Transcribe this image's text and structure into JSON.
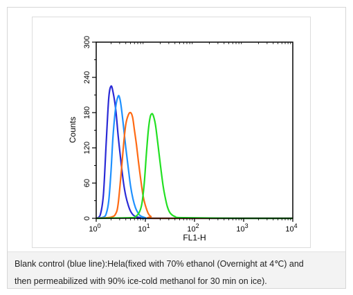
{
  "chart_data": {
    "type": "line",
    "title": "",
    "xlabel": "FL1-H",
    "ylabel": "Counts",
    "x_scale": "log",
    "xlim": [
      1,
      10000
    ],
    "ylim": [
      0,
      300
    ],
    "x_ticks": [
      {
        "value": 1,
        "base": "10",
        "exp": "0"
      },
      {
        "value": 10,
        "base": "10",
        "exp": "1"
      },
      {
        "value": 100,
        "base": "10",
        "exp": "2"
      },
      {
        "value": 1000,
        "base": "10",
        "exp": "3"
      },
      {
        "value": 10000,
        "base": "10",
        "exp": "4"
      }
    ],
    "y_ticks": [
      "0",
      "60",
      "120",
      "180",
      "240",
      "300"
    ],
    "grid": false,
    "legend": "none",
    "series": [
      {
        "color": "#2a2ad6",
        "x": [
          1,
          1.2,
          1.4,
          1.6,
          1.8,
          2.0,
          2.2,
          2.5,
          2.8,
          3.2,
          3.6,
          4.0,
          4.5,
          5.0,
          5.6,
          6.3,
          7,
          8,
          10,
          1000,
          10000
        ],
        "y": [
          0,
          5,
          40,
          130,
          205,
          225,
          215,
          185,
          140,
          95,
          60,
          38,
          22,
          12,
          6,
          3,
          2,
          1,
          0,
          0,
          0
        ]
      },
      {
        "color": "#1e90ff",
        "x": [
          1,
          1.4,
          1.6,
          1.8,
          2.0,
          2.2,
          2.5,
          2.8,
          3.0,
          3.2,
          3.5,
          4.0,
          4.5,
          5.0,
          5.6,
          6.3,
          7.1,
          8.0,
          10,
          12,
          1000,
          10000
        ],
        "y": [
          0,
          2,
          8,
          30,
          80,
          140,
          190,
          208,
          205,
          192,
          165,
          120,
          85,
          55,
          33,
          18,
          9,
          4,
          1,
          0,
          0,
          0
        ]
      },
      {
        "color": "#ff6a13",
        "x": [
          1,
          2.0,
          2.5,
          2.8,
          3.2,
          3.6,
          4.0,
          4.5,
          5.0,
          5.5,
          6.0,
          6.6,
          7.2,
          8.0,
          9.0,
          10,
          11.5,
          13,
          16,
          1000,
          10000
        ],
        "y": [
          0,
          2,
          8,
          25,
          75,
          125,
          160,
          176,
          180,
          172,
          150,
          125,
          98,
          68,
          38,
          22,
          8,
          3,
          0,
          0,
          0
        ]
      },
      {
        "color": "#22e022",
        "x": [
          1,
          5.0,
          6.3,
          7.5,
          8.5,
          9.5,
          10.5,
          11.5,
          12.5,
          13.5,
          14.5,
          16,
          17.5,
          19,
          21,
          23,
          25,
          28,
          32,
          40,
          60,
          1000,
          10000
        ],
        "y": [
          0,
          1,
          3,
          10,
          25,
          60,
          110,
          150,
          172,
          178,
          175,
          160,
          135,
          110,
          80,
          55,
          38,
          20,
          9,
          3,
          1,
          0,
          0
        ]
      }
    ]
  },
  "caption": {
    "line1": "Blank control (blue line):Hela(fixed with 70% ethanol (Overnight at 4℃) and",
    "line2": "then permeabilized with 90% ice-cold methanol for 30 min on ice)."
  }
}
